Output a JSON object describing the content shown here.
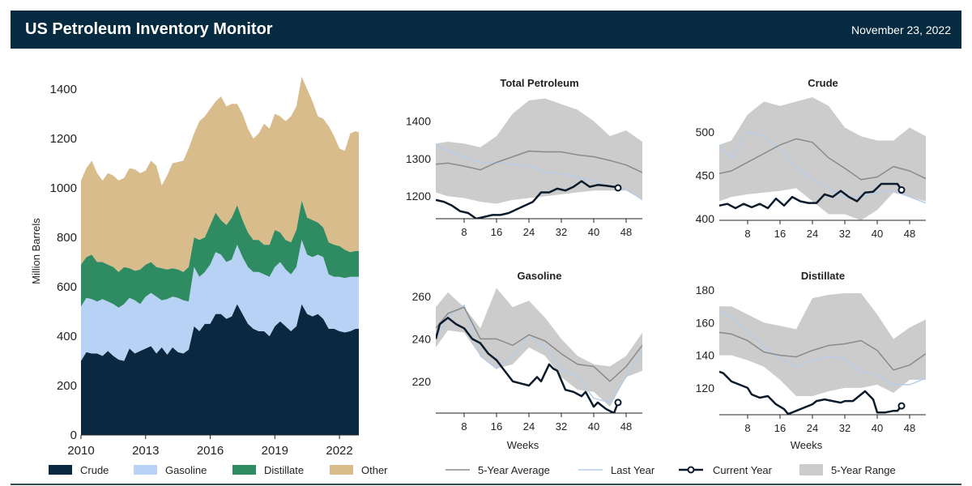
{
  "header": {
    "title": "US Petroleum Inventory Monitor",
    "date": "November 23, 2022",
    "background": "#062a3f"
  },
  "colors": {
    "crude": "#0a2940",
    "gasoline": "#b8d2f5",
    "distillate": "#2e8b62",
    "other": "#d9bc8c",
    "range": "#cccccc",
    "average": "#8a8a8a",
    "last_year": "#b8cde8",
    "current_year": "#0b1b2b"
  },
  "chart_data": [
    {
      "type": "area",
      "stacked": true,
      "ylabel": "Million Barrels",
      "xlabel": "",
      "xlim": [
        2010,
        2022.9
      ],
      "ylim": [
        0,
        1400
      ],
      "yticks": [
        0,
        200,
        400,
        600,
        800,
        1000,
        1200,
        1400
      ],
      "xticks": [
        2010,
        2013,
        2016,
        2019,
        2022
      ],
      "legend": "bottom",
      "x": [
        2010,
        2010.25,
        2010.5,
        2010.75,
        2011,
        2011.25,
        2011.5,
        2011.75,
        2012,
        2012.25,
        2012.5,
        2012.75,
        2013,
        2013.25,
        2013.5,
        2013.75,
        2014,
        2014.25,
        2014.5,
        2014.75,
        2015,
        2015.25,
        2015.5,
        2015.75,
        2016,
        2016.25,
        2016.5,
        2016.75,
        2017,
        2017.25,
        2017.5,
        2017.75,
        2018,
        2018.25,
        2018.5,
        2018.75,
        2019,
        2019.25,
        2019.5,
        2019.75,
        2020,
        2020.25,
        2020.5,
        2020.75,
        2021,
        2021.25,
        2021.5,
        2021.75,
        2022,
        2022.25,
        2022.5,
        2022.75,
        2022.9
      ],
      "series": [
        {
          "name": "Crude",
          "values": [
            300,
            335,
            330,
            330,
            320,
            340,
            320,
            305,
            300,
            350,
            330,
            340,
            350,
            360,
            330,
            355,
            325,
            355,
            335,
            330,
            345,
            440,
            420,
            450,
            450,
            490,
            490,
            470,
            480,
            530,
            490,
            450,
            430,
            420,
            420,
            400,
            440,
            460,
            440,
            420,
            440,
            530,
            490,
            480,
            490,
            470,
            430,
            430,
            420,
            415,
            420,
            430,
            430
          ]
        },
        {
          "name": "Gasoline",
          "values": [
            220,
            220,
            220,
            210,
            230,
            200,
            210,
            210,
            230,
            205,
            215,
            190,
            210,
            215,
            230,
            190,
            225,
            205,
            220,
            215,
            195,
            240,
            220,
            210,
            240,
            250,
            240,
            230,
            230,
            240,
            230,
            230,
            230,
            240,
            230,
            240,
            240,
            240,
            230,
            230,
            240,
            260,
            240,
            240,
            240,
            250,
            220,
            210,
            220,
            220,
            220,
            210,
            210
          ]
        },
        {
          "name": "Distillate",
          "values": [
            170,
            165,
            180,
            160,
            150,
            150,
            150,
            145,
            150,
            120,
            120,
            140,
            130,
            125,
            120,
            130,
            120,
            115,
            115,
            115,
            140,
            120,
            150,
            140,
            160,
            160,
            140,
            150,
            170,
            160,
            150,
            140,
            130,
            130,
            120,
            130,
            150,
            120,
            120,
            130,
            150,
            160,
            150,
            150,
            130,
            120,
            130,
            130,
            125,
            115,
            100,
            105,
            105
          ]
        },
        {
          "name": "Other",
          "values": [
            340,
            360,
            380,
            360,
            330,
            370,
            370,
            370,
            360,
            405,
            410,
            390,
            380,
            410,
            410,
            335,
            380,
            425,
            435,
            450,
            480,
            420,
            480,
            490,
            470,
            450,
            500,
            480,
            460,
            410,
            430,
            420,
            410,
            430,
            490,
            470,
            470,
            470,
            480,
            510,
            500,
            500,
            520,
            480,
            430,
            440,
            470,
            440,
            395,
            400,
            480,
            485,
            480
          ]
        }
      ]
    },
    {
      "type": "line",
      "title": "Total Petroleum",
      "xlabel": "",
      "xlim": [
        1,
        52
      ],
      "ylim": [
        1140,
        1470
      ],
      "yticks": [
        1200,
        1300,
        1400
      ],
      "xticks": [
        8,
        16,
        24,
        32,
        40,
        48
      ],
      "weeks": [
        1,
        4,
        8,
        12,
        16,
        20,
        24,
        28,
        32,
        36,
        40,
        44,
        48,
        52
      ],
      "range_upper": [
        1340,
        1345,
        1340,
        1330,
        1360,
        1420,
        1455,
        1460,
        1445,
        1430,
        1400,
        1360,
        1375,
        1345
      ],
      "range_lower": [
        1210,
        1200,
        1195,
        1185,
        1180,
        1190,
        1195,
        1200,
        1205,
        1210,
        1215,
        1215,
        1215,
        1190
      ],
      "average": [
        1285,
        1288,
        1280,
        1270,
        1290,
        1305,
        1320,
        1318,
        1318,
        1310,
        1305,
        1295,
        1283,
        1263
      ],
      "last_year": [
        1335,
        1320,
        1305,
        1290,
        1290,
        1285,
        1280,
        1265,
        1260,
        1250,
        1240,
        1225,
        1220,
        1190
      ],
      "current_weeks": [
        1,
        3,
        5,
        7,
        9,
        11,
        13,
        15,
        17,
        19,
        21,
        23,
        25,
        27,
        29,
        31,
        33,
        35,
        37,
        39,
        41,
        43,
        45,
        46
      ],
      "current_year": [
        1190,
        1185,
        1175,
        1160,
        1155,
        1140,
        1145,
        1150,
        1150,
        1155,
        1165,
        1175,
        1185,
        1210,
        1210,
        1220,
        1215,
        1225,
        1240,
        1225,
        1230,
        1228,
        1225,
        1222
      ]
    },
    {
      "type": "line",
      "title": "Crude",
      "xlabel": "",
      "xlim": [
        1,
        52
      ],
      "ylim": [
        398,
        540
      ],
      "yticks": [
        400,
        450,
        500
      ],
      "xticks": [
        8,
        16,
        24,
        32,
        40,
        48
      ],
      "weeks": [
        1,
        4,
        8,
        12,
        16,
        20,
        24,
        28,
        32,
        36,
        40,
        44,
        48,
        52
      ],
      "range_upper": [
        485,
        490,
        520,
        535,
        530,
        535,
        540,
        530,
        505,
        495,
        490,
        490,
        505,
        495
      ],
      "range_lower": [
        420,
        425,
        428,
        430,
        432,
        435,
        420,
        405,
        405,
        398,
        410,
        430,
        425,
        420
      ],
      "average": [
        452,
        455,
        465,
        475,
        485,
        492,
        488,
        470,
        458,
        445,
        448,
        460,
        455,
        446
      ],
      "last_year": [
        485,
        470,
        500,
        495,
        480,
        460,
        445,
        435,
        425,
        425,
        430,
        432,
        425,
        418
      ],
      "current_weeks": [
        1,
        3,
        5,
        7,
        9,
        11,
        13,
        15,
        17,
        19,
        21,
        23,
        25,
        27,
        29,
        31,
        33,
        35,
        37,
        39,
        41,
        43,
        45,
        46
      ],
      "current_year": [
        415,
        417,
        412,
        417,
        413,
        417,
        412,
        423,
        415,
        425,
        420,
        418,
        418,
        428,
        425,
        432,
        425,
        420,
        430,
        431,
        440,
        440,
        440,
        433
      ]
    },
    {
      "type": "line",
      "title": "Gasoline",
      "xlabel": "Weeks",
      "xlim": [
        1,
        52
      ],
      "ylim": [
        205,
        265
      ],
      "yticks": [
        220,
        240,
        260
      ],
      "xticks": [
        8,
        16,
        24,
        32,
        40,
        48
      ],
      "weeks": [
        1,
        4,
        8,
        12,
        16,
        20,
        24,
        28,
        32,
        36,
        40,
        44,
        48,
        52
      ],
      "range_upper": [
        255,
        262,
        255,
        245,
        264,
        255,
        258,
        250,
        240,
        232,
        228,
        227,
        232,
        243
      ],
      "range_lower": [
        236,
        244,
        243,
        232,
        226,
        228,
        236,
        232,
        222,
        216,
        215,
        208,
        222,
        225
      ],
      "average": [
        245,
        252,
        255,
        240,
        240,
        237,
        242,
        239,
        233,
        228,
        227,
        220,
        227,
        237
      ],
      "last_year": [
        240,
        250,
        256,
        232,
        226,
        232,
        242,
        236,
        226,
        222,
        212,
        210,
        222,
        235
      ],
      "current_weeks": [
        1,
        2,
        4,
        6,
        8,
        10,
        12,
        14,
        16,
        18,
        20,
        22,
        24,
        26,
        27,
        29,
        30,
        31,
        33,
        35,
        37,
        38,
        40,
        41,
        43,
        45,
        46
      ],
      "current_year": [
        240,
        247,
        250,
        247,
        245,
        240,
        238,
        233,
        230,
        225,
        220,
        219,
        218,
        222,
        220,
        228,
        226,
        225,
        216,
        215,
        213,
        215,
        208,
        210,
        207,
        205,
        210
      ]
    },
    {
      "type": "line",
      "title": "Distillate",
      "xlabel": "Weeks",
      "xlim": [
        1,
        52
      ],
      "ylim": [
        103.6,
        180
      ],
      "yticks": [
        120,
        140,
        160,
        180
      ],
      "xticks": [
        8,
        16,
        24,
        32,
        40,
        48
      ],
      "weeks": [
        1,
        4,
        8,
        12,
        16,
        20,
        24,
        28,
        32,
        36,
        40,
        44,
        48,
        52
      ],
      "range_upper": [
        170,
        170,
        165,
        160,
        158,
        156,
        175,
        177,
        178,
        178,
        165,
        150,
        157,
        162
      ],
      "range_lower": [
        140,
        140,
        137,
        133,
        125,
        115,
        115,
        118,
        120,
        120,
        122,
        117,
        125,
        125
      ],
      "average": [
        154,
        153,
        149,
        142,
        140,
        139,
        143,
        146,
        147,
        149,
        143,
        131,
        134,
        141
      ],
      "last_year": [
        168,
        163,
        155,
        145,
        138,
        133,
        137,
        139,
        138,
        130,
        128,
        122,
        122,
        126
      ],
      "current_weeks": [
        1,
        2,
        4,
        6,
        8,
        9,
        11,
        13,
        15,
        17,
        18,
        20,
        22,
        24,
        25,
        27,
        29,
        31,
        32,
        34,
        36,
        37,
        39,
        40,
        42,
        44,
        45,
        46
      ],
      "current_year": [
        130,
        129,
        124,
        122,
        120,
        116,
        114,
        115,
        110,
        107,
        104,
        106,
        108,
        110,
        112,
        113,
        112,
        111,
        112,
        112,
        116,
        118,
        113,
        105,
        105,
        106,
        106,
        109
      ]
    }
  ],
  "legend_left": [
    "Crude",
    "Gasoline",
    "Distillate",
    "Other"
  ],
  "legend_right": [
    "5-Year Average",
    "Last Year",
    "Current Year",
    "5-Year Range"
  ]
}
